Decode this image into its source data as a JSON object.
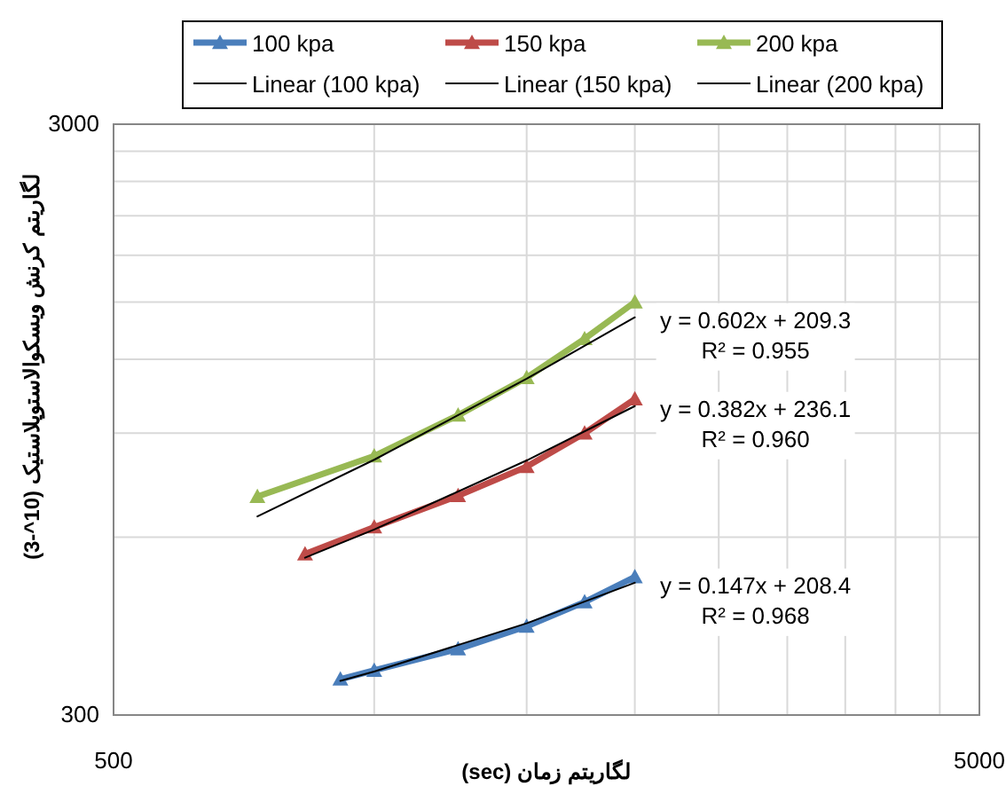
{
  "chart_data": {
    "type": "line",
    "xlabel": "لگاریتم زمان (sec)",
    "ylabel": "لگاریتم کرنش ویسکوالاستوپلاستیک (10^-3)",
    "log": "xy",
    "grid": true,
    "legend": "top",
    "xlim": [
      500,
      5000
    ],
    "ylim": [
      300,
      3000
    ],
    "xticks": [
      500,
      {
        "value": 1000,
        "label": null
      },
      {
        "value": 1500,
        "label": null
      },
      {
        "value": 2000,
        "label": null
      },
      {
        "value": 2500,
        "label": null
      },
      {
        "value": 3000,
        "label": null
      },
      {
        "value": 3500,
        "label": null
      },
      {
        "value": 4000,
        "label": null
      },
      {
        "value": 4500,
        "label": null
      },
      5000
    ],
    "yticks": [
      300,
      {
        "value": 600,
        "label": null
      },
      {
        "value": 900,
        "label": null
      },
      {
        "value": 1200,
        "label": null
      },
      {
        "value": 1500,
        "label": null
      },
      {
        "value": 1800,
        "label": null
      },
      {
        "value": 2100,
        "label": null
      },
      {
        "value": 2400,
        "label": null
      },
      {
        "value": 2700,
        "label": null
      },
      3000
    ],
    "series": [
      {
        "name": "100 kpa",
        "type": "line",
        "color": "#4a7ebb",
        "marker": "triangle",
        "x": [
          914,
          1000,
          1250,
          1500,
          1750,
          2000
        ],
        "values": [
          345,
          357,
          388,
          424,
          466,
          514
        ]
      },
      {
        "name": "150 kpa",
        "type": "line",
        "color": "#be4b48",
        "marker": "triangle",
        "x": [
          832,
          1000,
          1250,
          1500,
          1750,
          2000
        ],
        "values": [
          562,
          624,
          705,
          790,
          900,
          1028
        ]
      },
      {
        "name": "200 kpa",
        "type": "line",
        "color": "#98b954",
        "marker": "triangle",
        "x": [
          733,
          1000,
          1250,
          1500,
          1750,
          2000
        ],
        "values": [
          703,
          823,
          965,
          1117,
          1300,
          1500
        ]
      },
      {
        "name": "Linear (100 kpa)",
        "type": "line",
        "color": "#000000",
        "marker": "none",
        "x": [
          914,
          1000,
          1500,
          2000
        ],
        "values": [
          342.8,
          355.4,
          428.9,
          502.4
        ]
      },
      {
        "name": "Linear (150 kpa)",
        "type": "line",
        "color": "#000000",
        "marker": "none",
        "x": [
          832,
          1000,
          1500,
          2000
        ],
        "values": [
          553.9,
          618.1,
          809.1,
          1000.1
        ]
      },
      {
        "name": "Linear (200 kpa)",
        "type": "line",
        "color": "#000000",
        "marker": "none",
        "x": [
          733,
          1000,
          1500,
          2000
        ],
        "values": [
          650.6,
          811.3,
          1112.3,
          1413.3
        ]
      }
    ],
    "annotations": [
      "y = 0.147x + 208.4\nR² = 0.968",
      "y = 0.382x + 236.1\nR² = 0.960",
      "y = 0.602x + 209.3\nR² = 0.955"
    ]
  }
}
